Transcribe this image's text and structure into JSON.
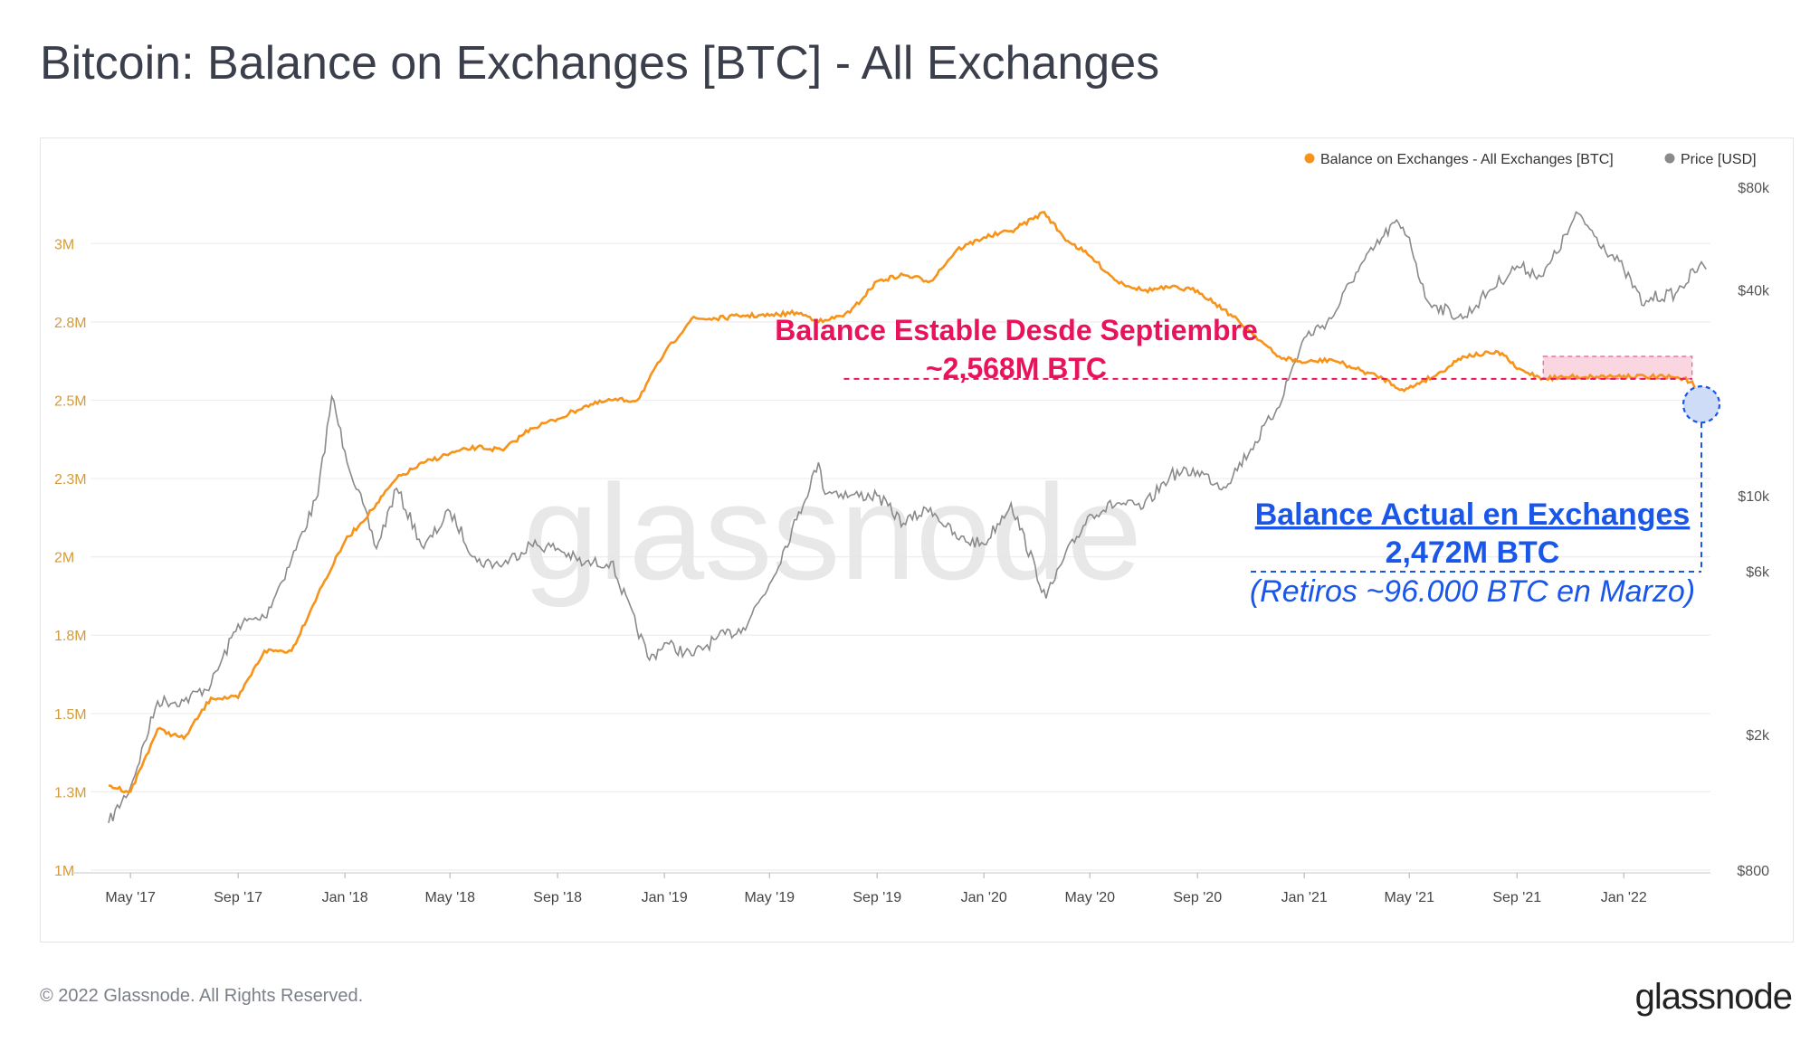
{
  "title": "Bitcoin: Balance on Exchanges [BTC] - All Exchanges",
  "footer": "© 2022 Glassnode. All Rights Reserved.",
  "brand": "glassnode",
  "watermark": "glassnode",
  "colors": {
    "balance": "#f7931a",
    "price": "#8a8a8a",
    "annot_red": "#e8135a",
    "annot_blue": "#1a56e8",
    "grid": "#eceef1",
    "axis_text": "#d49b3a"
  },
  "chart_data": {
    "type": "line",
    "x_ticks": [
      "May '17",
      "Sep '17",
      "Jan '18",
      "May '18",
      "Sep '18",
      "Jan '19",
      "May '19",
      "Sep '19",
      "Jan '20",
      "May '20",
      "Sep '20",
      "Jan '21",
      "May '21",
      "Sep '21",
      "Jan '22"
    ],
    "x_tick_dates": [
      "2017-05-01",
      "2017-09-01",
      "2018-01-01",
      "2018-05-01",
      "2018-09-01",
      "2019-01-01",
      "2019-05-01",
      "2019-09-01",
      "2020-01-01",
      "2020-05-01",
      "2020-09-01",
      "2021-01-01",
      "2021-05-01",
      "2021-09-01",
      "2022-01-01"
    ],
    "xlim": [
      "2017-04-06",
      "2022-04-10"
    ],
    "y_left": {
      "label": "",
      "ticks": [
        "1M",
        "1.3M",
        "1.5M",
        "1.8M",
        "2M",
        "2.3M",
        "2.5M",
        "2.8M",
        "3M"
      ],
      "tick_values": [
        1000000,
        1250000,
        1500000,
        1750000,
        2000000,
        2250000,
        2500000,
        2750000,
        3000000
      ],
      "ylim": [
        1000000,
        3200000
      ]
    },
    "y_right": {
      "label": "",
      "scale": "log",
      "ticks": [
        "$800",
        "$2k",
        "$6k",
        "$10k",
        "$40k",
        "$80k"
      ],
      "tick_values": [
        800,
        2000,
        6000,
        10000,
        40000,
        80000
      ]
    },
    "legend_position": "top-right",
    "series": [
      {
        "name": "Balance on Exchanges - All Exchanges [BTC]",
        "axis": "left",
        "x": [
          "2017-04-06",
          "2017-05-01",
          "2017-06-01",
          "2017-07-01",
          "2017-08-01",
          "2017-09-01",
          "2017-10-01",
          "2017-11-01",
          "2017-12-01",
          "2018-01-01",
          "2018-02-01",
          "2018-03-01",
          "2018-04-01",
          "2018-05-01",
          "2018-06-01",
          "2018-07-01",
          "2018-08-01",
          "2018-09-01",
          "2018-10-01",
          "2018-11-01",
          "2018-12-01",
          "2019-01-01",
          "2019-02-01",
          "2019-03-01",
          "2019-04-01",
          "2019-05-01",
          "2019-06-01",
          "2019-07-01",
          "2019-08-01",
          "2019-09-01",
          "2019-10-01",
          "2019-11-01",
          "2019-12-01",
          "2020-01-01",
          "2020-02-01",
          "2020-03-10",
          "2020-04-01",
          "2020-05-01",
          "2020-06-01",
          "2020-07-01",
          "2020-08-01",
          "2020-09-01",
          "2020-10-01",
          "2020-11-01",
          "2020-12-01",
          "2021-01-01",
          "2021-02-01",
          "2021-03-01",
          "2021-04-01",
          "2021-04-25",
          "2021-05-15",
          "2021-06-01",
          "2021-07-01",
          "2021-08-01",
          "2021-08-15",
          "2021-09-01",
          "2021-10-01",
          "2021-11-01",
          "2021-12-01",
          "2022-01-01",
          "2022-02-01",
          "2022-03-01",
          "2022-03-20",
          "2022-04-05"
        ],
        "values": [
          1270000,
          1250000,
          1450000,
          1420000,
          1550000,
          1550000,
          1700000,
          1700000,
          1880000,
          2050000,
          2150000,
          2250000,
          2300000,
          2330000,
          2350000,
          2340000,
          2410000,
          2440000,
          2480000,
          2500000,
          2500000,
          2650000,
          2760000,
          2760000,
          2770000,
          2770000,
          2780000,
          2750000,
          2780000,
          2880000,
          2900000,
          2880000,
          2980000,
          3020000,
          3040000,
          3100000,
          3020000,
          2960000,
          2880000,
          2850000,
          2860000,
          2850000,
          2790000,
          2720000,
          2640000,
          2620000,
          2630000,
          2600000,
          2570000,
          2530000,
          2560000,
          2580000,
          2640000,
          2650000,
          2650000,
          2600000,
          2570000,
          2575000,
          2575000,
          2578000,
          2575000,
          2572000,
          2560000,
          2472000
        ]
      },
      {
        "name": "Price [USD]",
        "axis": "right",
        "x": [
          "2017-04-06",
          "2017-05-01",
          "2017-06-01",
          "2017-07-01",
          "2017-08-01",
          "2017-09-01",
          "2017-10-01",
          "2017-11-01",
          "2017-12-01",
          "2017-12-17",
          "2018-01-01",
          "2018-02-06",
          "2018-03-01",
          "2018-04-01",
          "2018-05-01",
          "2018-06-01",
          "2018-07-01",
          "2018-08-01",
          "2018-09-01",
          "2018-10-01",
          "2018-11-01",
          "2018-12-15",
          "2019-01-01",
          "2019-02-01",
          "2019-03-01",
          "2019-04-01",
          "2019-05-01",
          "2019-06-01",
          "2019-06-26",
          "2019-07-01",
          "2019-08-01",
          "2019-09-01",
          "2019-10-01",
          "2019-11-01",
          "2019-12-01",
          "2020-01-01",
          "2020-02-01",
          "2020-03-12",
          "2020-04-01",
          "2020-05-01",
          "2020-06-01",
          "2020-07-01",
          "2020-08-01",
          "2020-09-01",
          "2020-10-01",
          "2020-11-01",
          "2020-12-01",
          "2021-01-01",
          "2021-02-01",
          "2021-03-01",
          "2021-04-14",
          "2021-05-01",
          "2021-05-19",
          "2021-06-01",
          "2021-07-01",
          "2021-08-01",
          "2021-09-01",
          "2021-10-01",
          "2021-11-10",
          "2021-12-01",
          "2022-01-01",
          "2022-01-24",
          "2022-02-01",
          "2022-03-01",
          "2022-03-28",
          "2022-04-05"
        ],
        "values": [
          1100,
          1400,
          2500,
          2500,
          2800,
          4200,
          4400,
          6500,
          10000,
          19500,
          13500,
          7000,
          10500,
          7000,
          9000,
          6400,
          6300,
          7200,
          7000,
          6300,
          6400,
          3300,
          3700,
          3400,
          3800,
          4100,
          5500,
          8500,
          12500,
          10500,
          10000,
          10000,
          8300,
          9200,
          7500,
          7200,
          9500,
          5000,
          6500,
          8800,
          9500,
          9200,
          11500,
          11800,
          10600,
          13700,
          18000,
          29000,
          33000,
          45000,
          63000,
          57000,
          38000,
          36000,
          33000,
          40000,
          47000,
          44000,
          67000,
          57000,
          46000,
          36000,
          38000,
          39000,
          47000,
          46000
        ]
      }
    ],
    "annotations": [
      {
        "text": "Balance Estable Desde Septiembre",
        "color": "red"
      },
      {
        "text": "~2,568M BTC",
        "color": "red"
      },
      {
        "text": "Balance Actual en Exchanges",
        "color": "blue"
      },
      {
        "text": "2,472M BTC",
        "color": "blue"
      },
      {
        "text": "(Retiros ~96.000 BTC en Marzo)",
        "color": "blue"
      }
    ]
  }
}
